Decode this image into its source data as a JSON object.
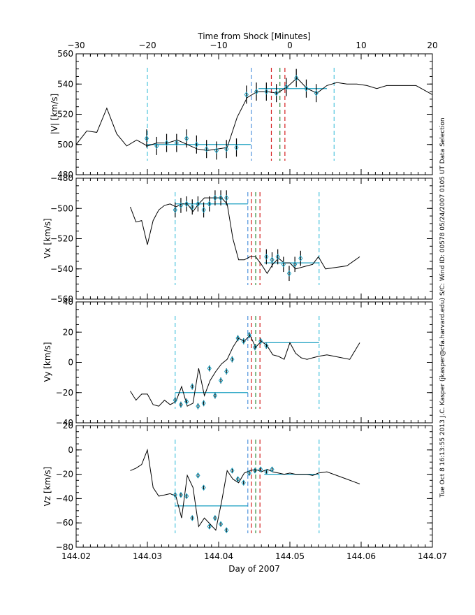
{
  "top_axis": {
    "label": "Time from Shock [Minutes]",
    "range": [
      -30,
      20
    ],
    "ticks": [
      -30,
      -20,
      -10,
      0,
      10,
      20
    ],
    "tick_labels": [
      "−30",
      "−20",
      "−10",
      "0",
      "10",
      "20"
    ]
  },
  "side_text": "Tue Oct  8 16:13:55 2013   J.C. Kasper (jkasper@cfa.harvard.edu)   S/C: Wind ID: 00578 05/24/2007   0105 UT Data Selection",
  "colors": {
    "data_line": "#000000",
    "fit_line": "#1a9fc0",
    "diamond": "#1a9fc0",
    "dash_outer": "#29b8d6",
    "dash_inner": "#2f7fd6",
    "shock_red": "#d42020",
    "shock_green": "#2c8a3a"
  },
  "chart_data": [
    {
      "type": "line",
      "panel": "V",
      "ylabel": "|V| [km/s]",
      "xlabel": "",
      "xlim": [
        144.02,
        144.07
      ],
      "ylim": [
        480,
        560
      ],
      "yticks": [
        480,
        500,
        520,
        540,
        560
      ],
      "ytick_labels": [
        "480",
        "500",
        "520",
        "540",
        "560"
      ],
      "series": [
        {
          "x": [
            144.02,
            144.0215,
            144.0229,
            144.0243,
            144.0257,
            144.0271,
            144.0285,
            144.03,
            144.0313,
            144.0328,
            144.0342,
            144.0356,
            144.037,
            144.0384,
            144.0398,
            144.0412,
            144.0426,
            144.044,
            144.0454,
            144.0468,
            144.0482,
            144.0496,
            144.051,
            144.0524,
            144.0538,
            144.0552,
            144.0566,
            144.058,
            144.0594,
            144.0608,
            144.0622,
            144.0636,
            144.0677,
            144.07
          ],
          "values": [
            500,
            509,
            508,
            524,
            507,
            499,
            503,
            499,
            501,
            501,
            503,
            500,
            497,
            496,
            497,
            498,
            518,
            531,
            535,
            535,
            534,
            538,
            544,
            537,
            534,
            539,
            541,
            540,
            540,
            539,
            537,
            539,
            539,
            533
          ]
        }
      ],
      "errorbars": {
        "x": [
          144.0299,
          144.0313,
          144.0327,
          144.0341,
          144.0355,
          144.0369,
          144.0383,
          144.0397,
          144.0411,
          144.0425,
          144.0439,
          144.0453,
          144.0467,
          144.0481,
          144.0495,
          144.0509,
          144.0523,
          144.0537
        ],
        "values": [
          504,
          499,
          501,
          501,
          504,
          500,
          497,
          496,
          497,
          498,
          533,
          535,
          535,
          534,
          538,
          544,
          537,
          534
        ],
        "err": [
          6,
          6,
          6,
          6,
          6,
          6,
          6,
          6,
          6,
          6,
          6,
          6,
          6,
          6,
          6,
          6,
          6,
          6
        ]
      },
      "fits": [
        {
          "x": [
            144.0299,
            144.0445
          ],
          "y": 500
        },
        {
          "x": [
            144.0456,
            144.0552
          ],
          "y": 537
        }
      ],
      "dashed_outer": [
        144.03,
        144.0562
      ],
      "dashed_inner": [
        144.0446
      ],
      "shock_lines": {
        "red": [
          144.0474,
          144.0493
        ],
        "green": [
          144.0486
        ]
      }
    },
    {
      "type": "line",
      "panel": "Vx",
      "ylabel": "Vx [km/s]",
      "xlabel": "",
      "xlim": [
        144.02,
        144.07
      ],
      "ylim": [
        -560,
        -480
      ],
      "yticks": [
        -560,
        -540,
        -520,
        -500,
        -480
      ],
      "ytick_labels": [
        "−560",
        "−540",
        "−520",
        "−500",
        "−480"
      ],
      "series": [
        {
          "x": [
            144.0276,
            144.0284,
            144.0292,
            144.03,
            144.0308,
            144.0316,
            144.0324,
            144.0332,
            144.034,
            144.0348,
            144.0356,
            144.0364,
            144.0372,
            144.038,
            144.0388,
            144.0396,
            144.0404,
            144.0412,
            144.042,
            144.0428,
            144.0436,
            144.0444,
            144.0452,
            144.046,
            144.0468,
            144.0476,
            144.0484,
            144.0492,
            144.05,
            144.0508,
            144.0516,
            144.0524,
            144.0532,
            144.054,
            144.055,
            144.058,
            144.0598
          ],
          "values": [
            -499,
            -509,
            -508,
            -524,
            -508,
            -501,
            -498,
            -497,
            -499,
            -497,
            -497,
            -502,
            -497,
            -493,
            -493,
            -493,
            -493,
            -497,
            -520,
            -534,
            -534,
            -532,
            -532,
            -537,
            -543,
            -537,
            -533,
            -536,
            -536,
            -540,
            -539,
            -538,
            -537,
            -532,
            -540,
            -538,
            -532
          ]
        }
      ],
      "errorbars": {
        "x": [
          144.0339,
          144.0347,
          144.0355,
          144.0363,
          144.0371,
          144.0379,
          144.0387,
          144.0395,
          144.0403,
          144.0411,
          144.0467,
          144.0475,
          144.0483,
          144.0491,
          144.0499,
          144.0507,
          144.0515
        ],
        "values": [
          -501,
          -498,
          -497,
          -499,
          -497,
          -501,
          -497,
          -493,
          -493,
          -493,
          -532,
          -534,
          -532,
          -537,
          -543,
          -537,
          -533
        ],
        "err": [
          5,
          5,
          5,
          5,
          5,
          5,
          5,
          5,
          5,
          5,
          5,
          5,
          5,
          5,
          5,
          5,
          5
        ]
      },
      "fits": [
        {
          "x": [
            144.0339,
            144.0441
          ],
          "y": -497
        },
        {
          "x": [
            144.0464,
            144.0541
          ],
          "y": -536
        }
      ],
      "dashed_outer": [
        144.0339,
        144.0541
      ],
      "dashed_inner": [
        144.0441
      ],
      "shock_lines": {
        "red": [
          144.0446,
          144.0458
        ],
        "green": [
          144.0452
        ]
      }
    },
    {
      "type": "line",
      "panel": "Vy",
      "ylabel": "Vy [km/s]",
      "xlabel": "",
      "xlim": [
        144.02,
        144.07
      ],
      "ylim": [
        -40,
        40
      ],
      "yticks": [
        -40,
        -20,
        0,
        20,
        40
      ],
      "ytick_labels": [
        "−40",
        "−20",
        "0",
        "20",
        "40"
      ],
      "series": [
        {
          "x": [
            144.0276,
            144.0284,
            144.0292,
            144.03,
            144.0308,
            144.0316,
            144.0324,
            144.0332,
            144.034,
            144.0348,
            144.0356,
            144.0364,
            144.0372,
            144.038,
            144.0388,
            144.0396,
            144.0404,
            144.0412,
            144.042,
            144.0428,
            144.0436,
            144.0444,
            144.0452,
            144.046,
            144.0468,
            144.0476,
            144.0484,
            144.0492,
            144.05,
            144.0508,
            144.0516,
            144.0524,
            144.0532,
            144.054,
            144.0552,
            144.0584,
            144.0598
          ],
          "values": [
            -19,
            -25,
            -21,
            -21,
            -28,
            -29,
            -25,
            -28,
            -26,
            -16,
            -29,
            -27,
            -4,
            -22,
            -12,
            -6,
            -1,
            2,
            10,
            16,
            14,
            18,
            10,
            14,
            11,
            5,
            4,
            2,
            13,
            6,
            3,
            2,
            3,
            4,
            5,
            2,
            13
          ]
        }
      ],
      "errorbars": {
        "x": [
          144.0339,
          144.0347,
          144.0355,
          144.0363,
          144.0371,
          144.0379,
          144.0387,
          144.0395,
          144.0403,
          144.0411,
          144.0419,
          144.0427,
          144.0435,
          144.0443,
          144.0451,
          144.0459,
          144.0467
        ],
        "values": [
          -25,
          -28,
          -26,
          -16,
          -29,
          -27,
          -4,
          -22,
          -12,
          -6,
          2,
          16,
          14,
          18,
          10,
          14,
          11
        ],
        "err": [
          2,
          2,
          2,
          2,
          2,
          2,
          2,
          2,
          2,
          2,
          2,
          2,
          2,
          2,
          2,
          2,
          2
        ]
      },
      "fits": [
        {
          "x": [
            144.0339,
            144.0441
          ],
          "y": -20
        },
        {
          "x": [
            144.0464,
            144.0541
          ],
          "y": 13
        }
      ],
      "dashed_outer": [
        144.0339,
        144.0541
      ],
      "dashed_inner": [
        144.0441
      ],
      "shock_lines": {
        "red": [
          144.0446,
          144.0458
        ],
        "green": [
          144.0452
        ]
      }
    },
    {
      "type": "line",
      "panel": "Vz",
      "ylabel": "Vz [km/s]",
      "xlabel": "Day of 2007",
      "xlim": [
        144.02,
        144.07
      ],
      "ylim": [
        -80,
        20
      ],
      "yticks": [
        -80,
        -60,
        -40,
        -20,
        0,
        20
      ],
      "ytick_labels": [
        "−80",
        "−60",
        "−40",
        "−20",
        "0",
        "20"
      ],
      "xticks": [
        144.02,
        144.03,
        144.04,
        144.05,
        144.06,
        144.07
      ],
      "xtick_labels": [
        "144.02",
        "144.03",
        "144.04",
        "144.05",
        "144.06",
        "144.07"
      ],
      "series": [
        {
          "x": [
            144.0276,
            144.0284,
            144.0292,
            144.03,
            144.0308,
            144.0316,
            144.0324,
            144.0332,
            144.034,
            144.0348,
            144.0356,
            144.0364,
            144.0372,
            144.038,
            144.0388,
            144.0396,
            144.0404,
            144.0412,
            144.042,
            144.0428,
            144.0436,
            144.0444,
            144.0452,
            144.046,
            144.0468,
            144.0476,
            144.0484,
            144.0492,
            144.05,
            144.0508,
            144.0516,
            144.0524,
            144.0532,
            144.054,
            144.0552,
            144.058,
            144.0598
          ],
          "values": [
            -17,
            -15,
            -12,
            0,
            -31,
            -38,
            -37,
            -36,
            -38,
            -56,
            -21,
            -31,
            -63,
            -56,
            -61,
            -66,
            -43,
            -17,
            -24,
            -27,
            -19,
            -17,
            -16,
            -18,
            -16,
            -18,
            -19,
            -20,
            -19,
            -20,
            -20,
            -20,
            -21,
            -19,
            -18,
            -24,
            -28
          ]
        }
      ],
      "errorbars": {
        "x": [
          144.0339,
          144.0347,
          144.0355,
          144.0363,
          144.0371,
          144.0379,
          144.0387,
          144.0395,
          144.0403,
          144.0411,
          144.0419,
          144.0427,
          144.0435,
          144.0443,
          144.0451,
          144.0459,
          144.0467,
          144.0475
        ],
        "values": [
          -37,
          -37,
          -38,
          -56,
          -21,
          -31,
          -63,
          -56,
          -61,
          -66,
          -17,
          -24,
          -27,
          -19,
          -17,
          -16,
          -18,
          -16
        ],
        "err": [
          2,
          2,
          2,
          2,
          2,
          2,
          2,
          2,
          2,
          2,
          2,
          2,
          2,
          2,
          2,
          2,
          2,
          2
        ]
      },
      "fits": [
        {
          "x": [
            144.0339,
            144.0441
          ],
          "y": -46
        },
        {
          "x": [
            144.0464,
            144.0541
          ],
          "y": -20
        }
      ],
      "dashed_outer": [
        144.0339,
        144.0541
      ],
      "dashed_inner": [
        144.0441
      ],
      "shock_lines": {
        "red": [
          144.0446,
          144.0458
        ],
        "green": [
          144.0452
        ]
      }
    }
  ]
}
